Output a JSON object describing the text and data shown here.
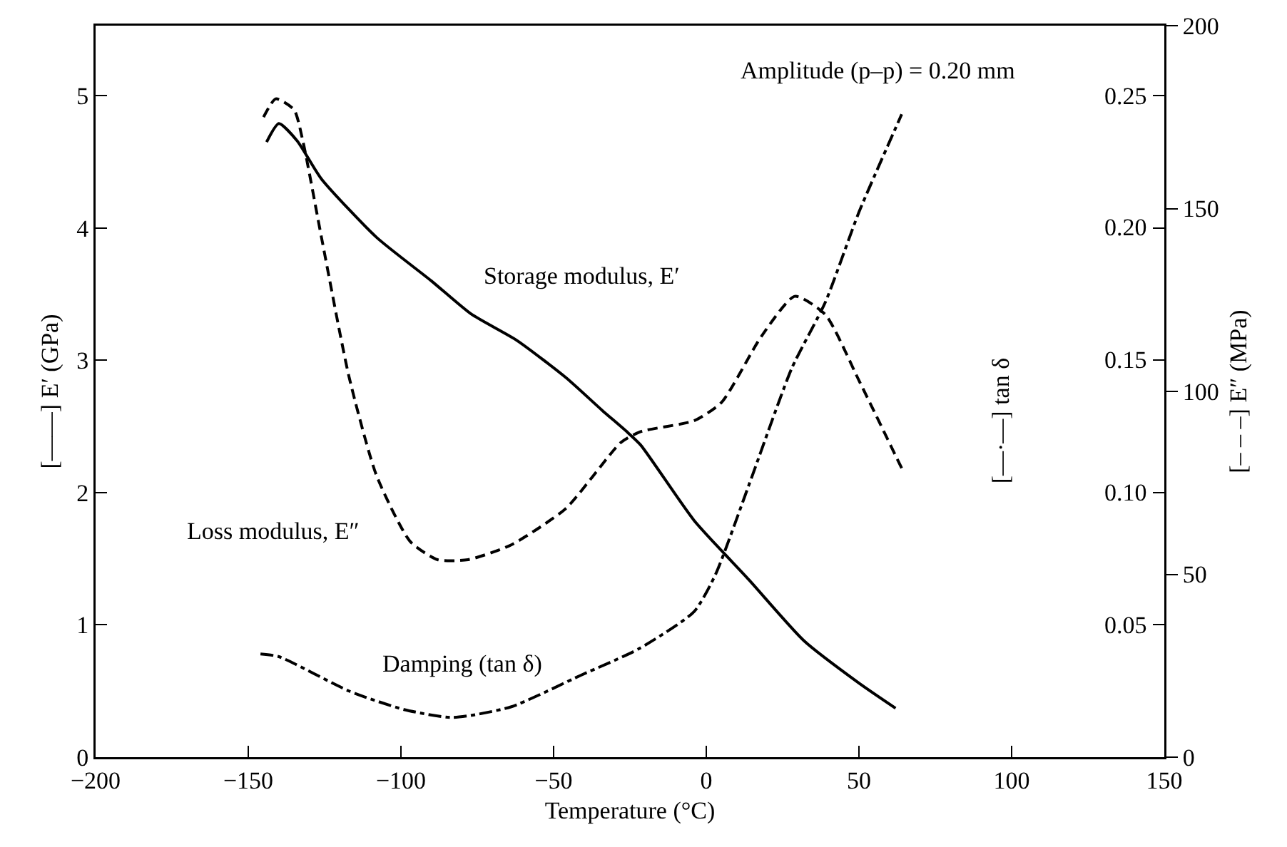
{
  "chart_data": {
    "type": "line",
    "xlabel": "Temperature (°C)",
    "ylabel": "[——] E′ (GPa)",
    "y2label": "[—·—] tan δ",
    "y3label": "[– – –] E″ (MPa)",
    "annotations": [
      "Amplitude (p–p) = 0.20 mm"
    ],
    "xlim": [
      -200,
      150
    ],
    "xticks": [
      -200,
      -150,
      -100,
      -50,
      0,
      50,
      100,
      150
    ],
    "ylim": [
      0,
      5.53
    ],
    "yticks": [
      0,
      1,
      2,
      3,
      4,
      5
    ],
    "y2lim": [
      0,
      0.2765
    ],
    "y2ticks": [
      {
        "value": 0.05,
        "label": "0.05"
      },
      {
        "value": 0.1,
        "label": "0.10"
      },
      {
        "value": 0.15,
        "label": "0.15"
      },
      {
        "value": 0.2,
        "label": "0.20"
      },
      {
        "value": 0.25,
        "label": "0.25"
      }
    ],
    "y3lim": [
      0,
      200
    ],
    "y3ticks": [
      0,
      50,
      100,
      150,
      200
    ],
    "grid": false,
    "legend": false,
    "marker": "none",
    "series": [
      {
        "name": "Storage modulus, E′",
        "color": "#000000",
        "line_style": "solid",
        "x": [
          -144,
          -140,
          -134,
          -126,
          -108,
          -90,
          -77,
          -62,
          -46,
          -34,
          -26,
          -21.5,
          -4,
          14,
          32,
          50,
          62
        ],
        "values": [
          4.65,
          4.79,
          4.66,
          4.37,
          3.93,
          3.6,
          3.35,
          3.15,
          2.87,
          2.62,
          2.46,
          2.36,
          1.79,
          1.34,
          0.88,
          0.56,
          0.37
        ]
      },
      {
        "name": "Loss modulus, E″",
        "color": "#000000",
        "line_style": "dashed",
        "axis": "y3",
        "x": [
          -145,
          -141,
          -135,
          -132,
          -126,
          -117,
          -108,
          -97,
          -88,
          -78,
          -64,
          -46,
          -28,
          -21.5,
          -4,
          5,
          18,
          29,
          39,
          50,
          64
        ],
        "values": [
          175,
          180,
          177,
          168,
          142,
          104,
          77,
          59,
          54,
          54,
          58,
          68,
          86,
          89,
          92,
          97,
          115,
          126,
          121,
          103,
          79
        ]
      },
      {
        "name": "Damping (tan δ)",
        "color": "#000000",
        "line_style": "dashdot",
        "axis": "y2",
        "x": [
          -146,
          -140,
          -117,
          -99,
          -83,
          -64,
          -41,
          -22,
          -4,
          3,
          14,
          28,
          39,
          50,
          64
        ],
        "values": [
          0.039,
          0.038,
          0.025,
          0.018,
          0.015,
          0.019,
          0.031,
          0.041,
          0.055,
          0.069,
          0.103,
          0.147,
          0.172,
          0.206,
          0.243
        ]
      }
    ]
  }
}
